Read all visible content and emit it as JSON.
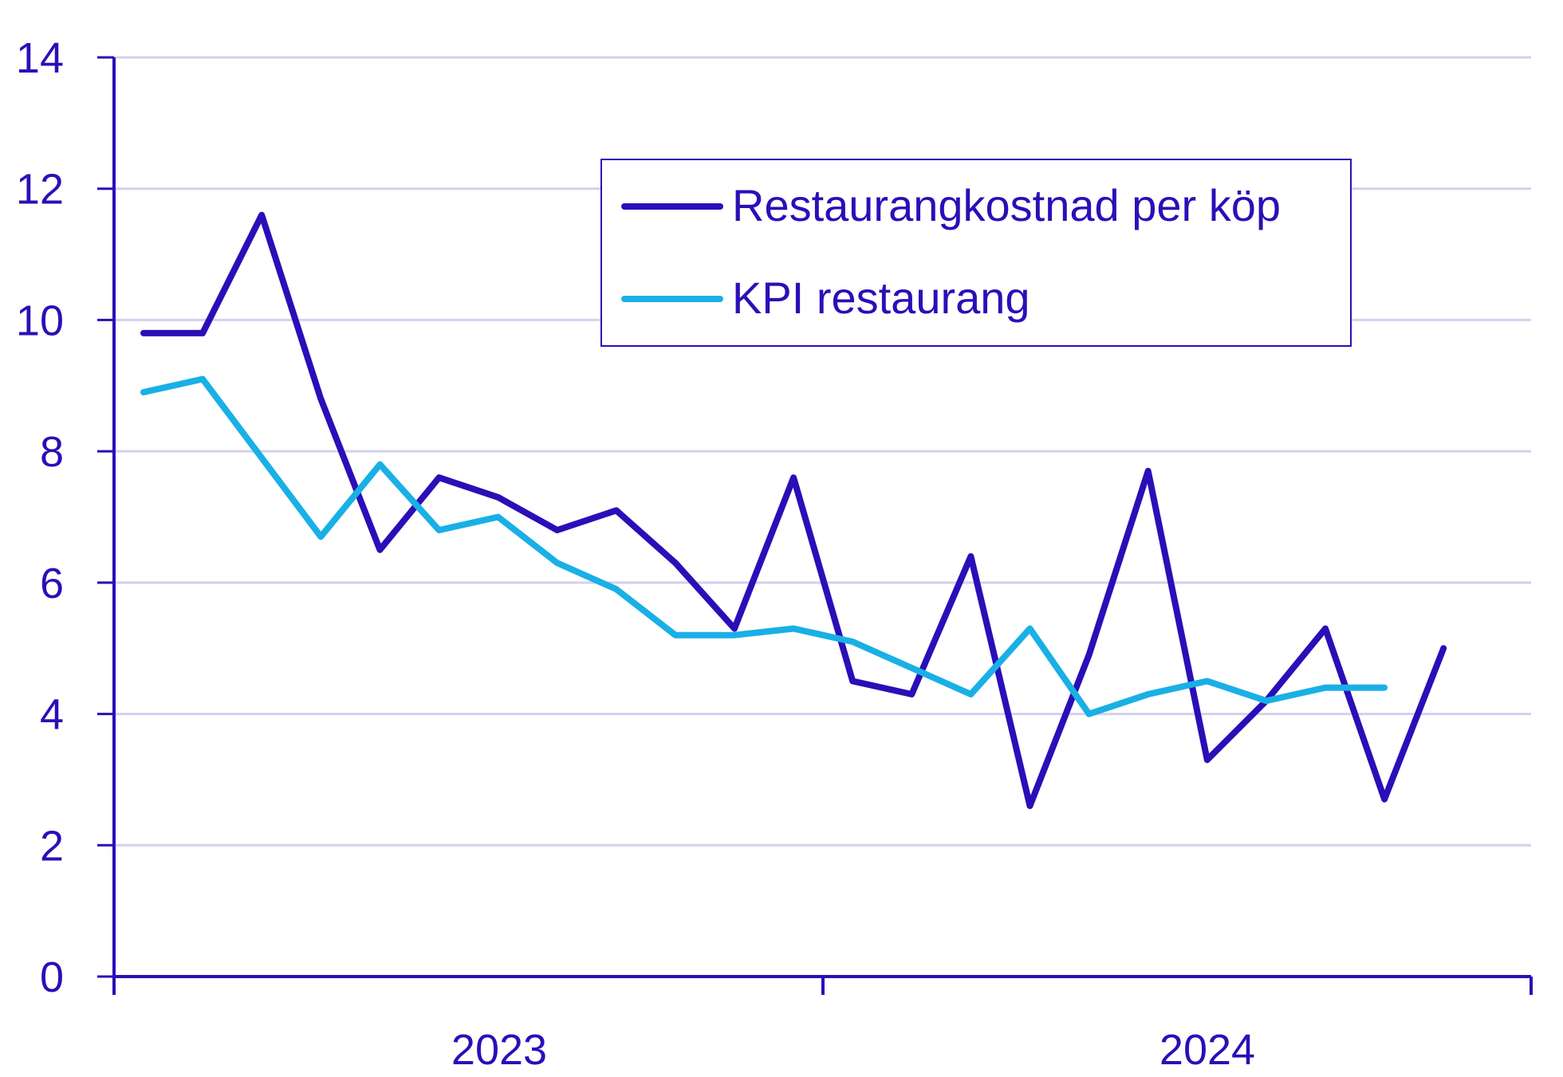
{
  "chart_data": {
    "type": "line",
    "title": "",
    "xlabel": "",
    "ylabel": "",
    "ylim": [
      0,
      14
    ],
    "yticks": [
      0,
      2,
      4,
      6,
      8,
      10,
      12,
      14
    ],
    "xticks": [
      "2023",
      "2024"
    ],
    "grid": "horizontal",
    "legend_placement": "top-right",
    "colors": {
      "axis": "#2a0fb8",
      "grid": "#d4d0ee",
      "text": "#2a0fb8"
    },
    "series": [
      {
        "name": "Restaurangkostnad per köp",
        "color": "#2a0fb8",
        "values": [
          9.8,
          9.8,
          11.6,
          8.8,
          6.5,
          7.6,
          7.3,
          6.8,
          7.1,
          6.3,
          5.3,
          7.6,
          4.5,
          4.3,
          6.4,
          2.6,
          4.9,
          7.7,
          3.3,
          4.2,
          5.3,
          2.7,
          5.0
        ]
      },
      {
        "name": "KPI restaurang",
        "color": "#19b0e6",
        "values": [
          8.9,
          9.1,
          7.9,
          6.7,
          7.8,
          6.8,
          7.0,
          6.3,
          5.9,
          5.2,
          5.2,
          5.3,
          5.1,
          4.7,
          4.3,
          5.3,
          4.0,
          4.3,
          4.5,
          4.2,
          4.4,
          4.4,
          null
        ]
      }
    ]
  }
}
